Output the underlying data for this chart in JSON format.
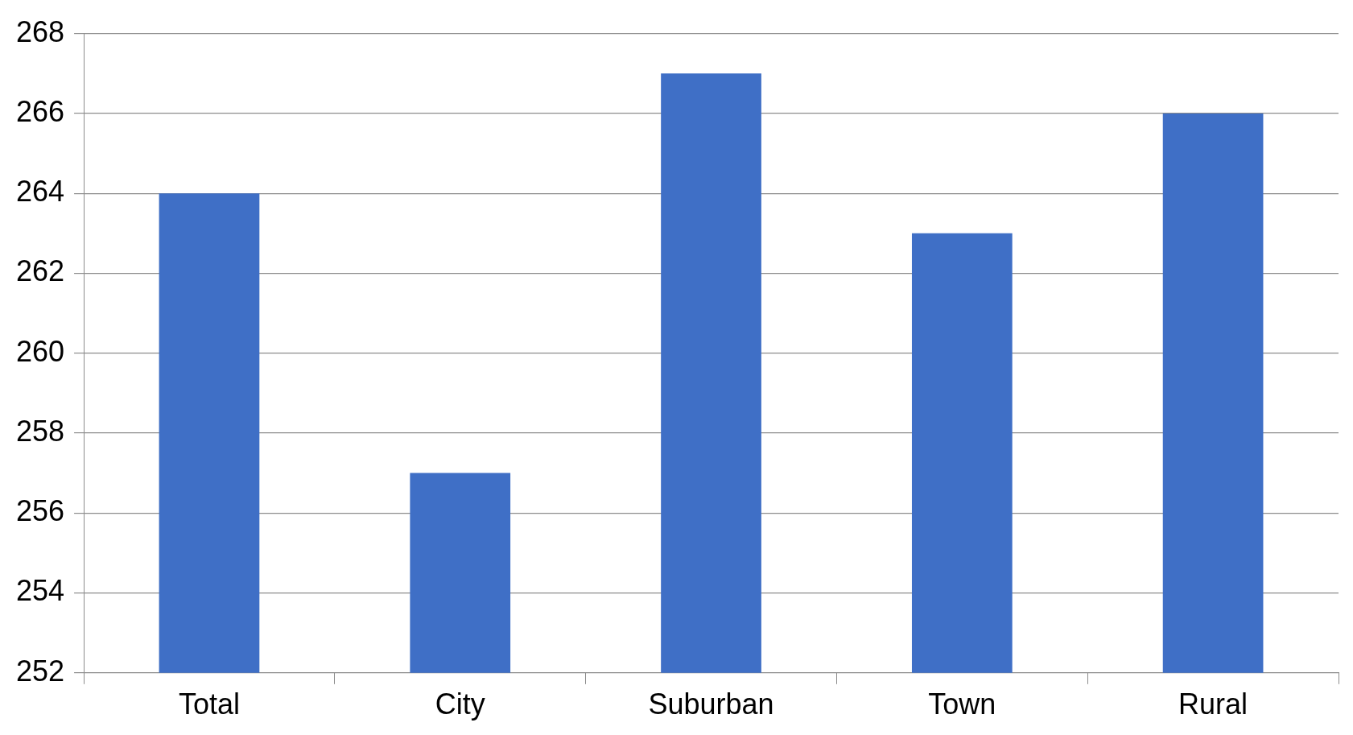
{
  "chart_data": {
    "type": "bar",
    "categories": [
      "Total",
      "City",
      "Suburban",
      "Town",
      "Rural"
    ],
    "values": [
      264,
      257,
      267,
      263,
      266
    ],
    "color": "#3f6fc6",
    "ylim": [
      252,
      268
    ],
    "yticks": [
      252,
      254,
      256,
      258,
      260,
      262,
      264,
      266,
      268
    ],
    "grid": "y",
    "legend": false
  }
}
